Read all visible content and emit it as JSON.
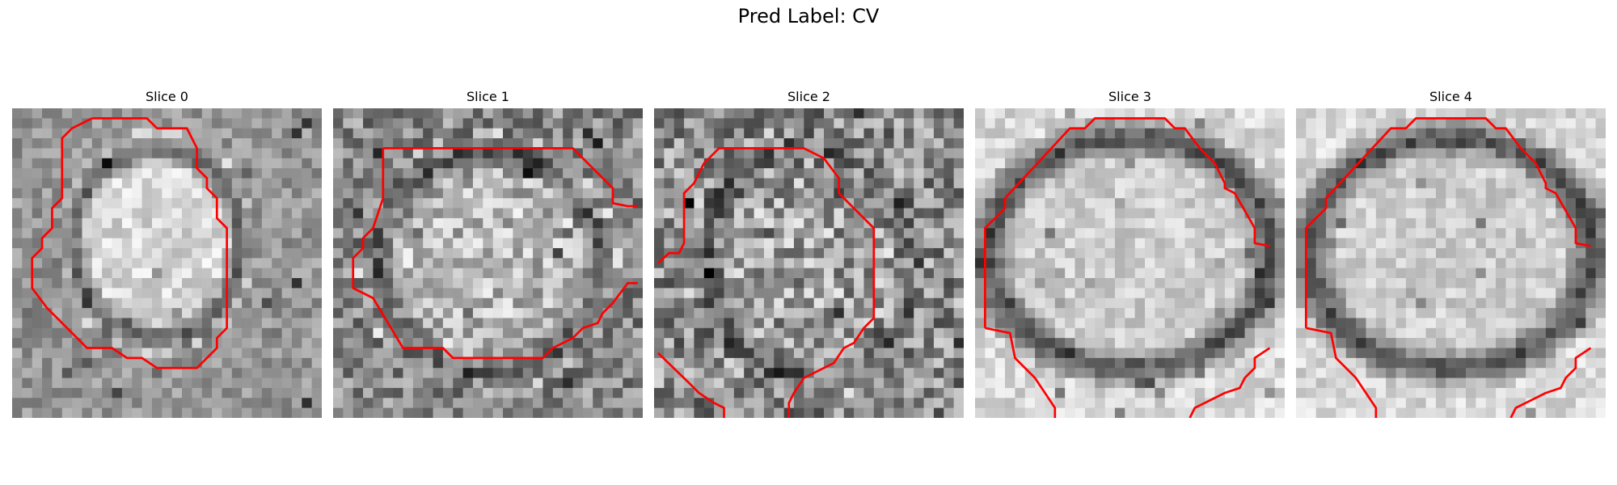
{
  "figure": {
    "title": "Pred Label: CV"
  },
  "panels": [
    {
      "title": "Slice 0"
    },
    {
      "title": "Slice 1"
    },
    {
      "title": "Slice 2"
    },
    {
      "title": "Slice 3"
    },
    {
      "title": "Slice 4"
    }
  ],
  "colors": {
    "contour": "#ff0000",
    "background": "#ffffff"
  }
}
